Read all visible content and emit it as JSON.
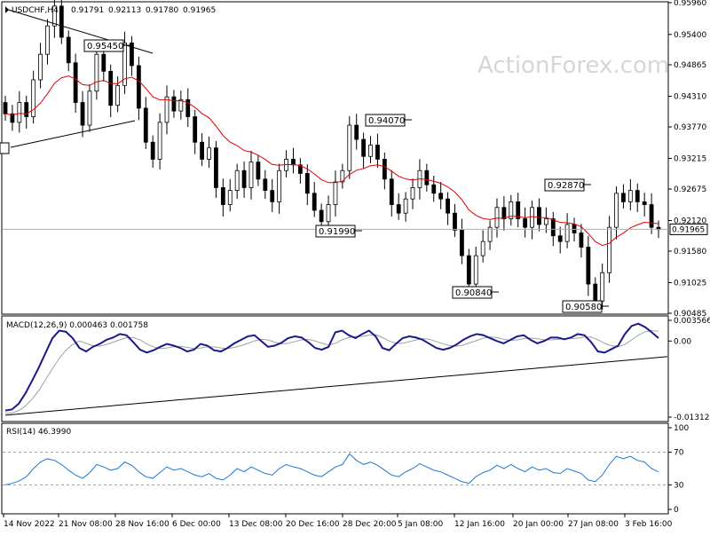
{
  "watermark": "ActionForex.com",
  "chart_data": [
    {
      "type": "candlestick",
      "panel": "price",
      "title": "USDCHF,H4",
      "ohlc": [
        "0.91791",
        "0.92113",
        "0.91780",
        "0.91965"
      ],
      "last_price": 0.91965,
      "last_price_label": "0.91965",
      "ylim": [
        0.90485,
        0.9596
      ],
      "y_ticks": [
        0.9596,
        0.954,
        0.94865,
        0.9431,
        0.9377,
        0.93215,
        0.92675,
        0.9212,
        0.9158,
        0.91025,
        0.90485
      ],
      "y_tick_labels": [
        "0.95960",
        "0.95400",
        "0.94865",
        "0.94310",
        "0.93770",
        "0.93215",
        "0.92675",
        "0.92120",
        "0.91580",
        "0.91025",
        "0.90485"
      ],
      "annotations": [
        {
          "label": "0.95450",
          "value": 0.9545,
          "date": "23 Nov"
        },
        {
          "label": "0.94070",
          "value": 0.9407,
          "date": "2 Jan"
        },
        {
          "label": "0.91990",
          "value": 0.9199,
          "date": "28 Dec"
        },
        {
          "label": "0.92870",
          "value": 0.9287,
          "date": "29 Jan"
        },
        {
          "label": "0.90840",
          "value": 0.9084,
          "date": "16 Jan"
        },
        {
          "label": "0.90580",
          "value": 0.9058,
          "date": "1 Feb"
        }
      ],
      "series": [
        {
          "type": "candlestick",
          "close": [
            0.94,
            0.9385,
            0.942,
            0.9395,
            0.946,
            0.9505,
            0.9555,
            0.959,
            0.9535,
            0.949,
            0.942,
            0.938,
            0.944,
            0.9505,
            0.9475,
            0.9415,
            0.945,
            0.9525,
            0.9485,
            0.941,
            0.935,
            0.932,
            0.9385,
            0.943,
            0.9405,
            0.9425,
            0.9395,
            0.935,
            0.932,
            0.934,
            0.927,
            0.924,
            0.9265,
            0.93,
            0.927,
            0.9315,
            0.9285,
            0.9265,
            0.9245,
            0.93,
            0.932,
            0.931,
            0.9295,
            0.926,
            0.923,
            0.921,
            0.924,
            0.928,
            0.93,
            0.938,
            0.9355,
            0.9325,
            0.9345,
            0.932,
            0.9285,
            0.924,
            0.9225,
            0.925,
            0.927,
            0.93,
            0.9275,
            0.926,
            0.925,
            0.9225,
            0.9195,
            0.915,
            0.91,
            0.915,
            0.9175,
            0.92,
            0.9235,
            0.9215,
            0.9245,
            0.9215,
            0.92,
            0.9235,
            0.9205,
            0.9215,
            0.9185,
            0.9175,
            0.9205,
            0.919,
            0.9165,
            0.91,
            0.907,
            0.912,
            0.92,
            0.926,
            0.9245,
            0.9265,
            0.9245,
            0.924,
            0.92,
            0.9196
          ]
        },
        {
          "type": "line",
          "color": "#e00000"
        }
      ],
      "vertical_lines_every": 20
    },
    {
      "type": "line",
      "panel": "macd",
      "title": "MACD(12,26,9) 0.000463 0.001758",
      "ylim": [
        -0.013125,
        0.003566
      ],
      "y_ticks": [
        0.003566,
        0.0,
        -0.013125
      ],
      "y_tick_labels": [
        "0.003566",
        "0.00",
        "-0.013125"
      ],
      "series": [
        {
          "type": "line",
          "color": "#1a1a8c",
          "values": [
            -0.012,
            -0.0118,
            -0.0108,
            -0.009,
            -0.0068,
            -0.0045,
            -0.002,
            0.0005,
            0.0018,
            0.0016,
            0.0005,
            -0.0012,
            -0.0018,
            -0.001,
            -0.0005,
            0.0002,
            0.0006,
            0.0012,
            0.001,
            -0.0002,
            -0.0015,
            -0.002,
            -0.0016,
            -0.001,
            -0.0005,
            -0.0008,
            -0.0012,
            -0.0018,
            -0.0015,
            -0.0005,
            -0.0008,
            -0.0016,
            -0.0018,
            -0.0012,
            -0.0004,
            0.0002,
            0.0008,
            0.001,
            0.0,
            -0.001,
            -0.0008,
            -0.0003,
            0.0005,
            0.0008,
            0.0006,
            -0.0002,
            -0.0012,
            -0.0015,
            -0.001,
            0.0015,
            0.0018,
            0.001,
            0.0005,
            0.0012,
            0.0018,
            0.0008,
            -0.0012,
            -0.0016,
            -0.0005,
            0.0005,
            0.0008,
            0.0006,
            0.0002,
            -0.0005,
            -0.0012,
            -0.0015,
            -0.0012,
            -0.0006,
            0.0002,
            0.0008,
            0.0012,
            0.001,
            0.0005,
            0.0,
            -0.0004,
            0.0002,
            0.0008,
            0.001,
            0.0002,
            -0.0004,
            0.0,
            0.0006,
            0.0006,
            0.0003,
            0.0006,
            0.0012,
            0.001,
            -0.0002,
            -0.0018,
            -0.002,
            -0.0014,
            -0.0008,
            0.0012,
            0.0026,
            0.003,
            0.0024,
            0.0015,
            0.0005
          ]
        },
        {
          "type": "line",
          "color": "#a0a0a0",
          "values": [
            -0.0125,
            -0.0124,
            -0.012,
            -0.0112,
            -0.01,
            -0.0085,
            -0.0066,
            -0.0048,
            -0.003,
            -0.0016,
            -0.0006,
            0.0,
            -0.0004,
            -0.0008,
            -0.0009,
            -0.0006,
            -0.0002,
            0.0002,
            0.0006,
            0.0006,
            0.0002,
            -0.0005,
            -0.001,
            -0.0013,
            -0.0012,
            -0.001,
            -0.0009,
            -0.0011,
            -0.0013,
            -0.0012,
            -0.001,
            -0.001,
            -0.0012,
            -0.0013,
            -0.0011,
            -0.0008,
            -0.0004,
            0.0,
            0.0003,
            0.0002,
            -0.0002,
            -0.0005,
            -0.0004,
            -0.0001,
            0.0002,
            0.0003,
            0.0,
            -0.0004,
            -0.0007,
            -0.0004,
            0.0002,
            0.0006,
            0.0008,
            0.0008,
            0.001,
            0.0011,
            0.0006,
            0.0,
            -0.0004,
            -0.0004,
            -0.0001,
            0.0002,
            0.0004,
            0.0003,
            -0.0001,
            -0.0005,
            -0.0008,
            -0.0009,
            -0.0007,
            -0.0003,
            0.0001,
            0.0005,
            0.0007,
            0.0006,
            0.0003,
            0.0001,
            0.0002,
            0.0004,
            0.0005,
            0.0004,
            0.0002,
            0.0002,
            0.0003,
            0.0004,
            0.0004,
            0.0005,
            0.0007,
            0.0007,
            0.0002,
            -0.0004,
            -0.0008,
            -0.001,
            -0.0006,
            0.0002,
            0.001,
            0.0016,
            0.0018,
            0.0017
          ]
        }
      ],
      "trendline": {
        "from": [
          0,
          -0.0128
        ],
        "to": [
          97,
          -0.0027
        ]
      }
    },
    {
      "type": "line",
      "panel": "rsi",
      "title": "RSI(14) 46.3990",
      "ylim": [
        0,
        100
      ],
      "y_ticks": [
        100,
        70,
        30,
        0
      ],
      "y_tick_labels": [
        "100",
        "70",
        "30",
        "0"
      ],
      "levels": [
        70,
        30
      ],
      "series": [
        {
          "type": "line",
          "color": "#1f77d4",
          "values": [
            30,
            32,
            35,
            40,
            50,
            58,
            62,
            60,
            55,
            48,
            42,
            38,
            45,
            55,
            52,
            48,
            50,
            58,
            54,
            46,
            40,
            38,
            45,
            52,
            48,
            50,
            46,
            42,
            40,
            44,
            38,
            36,
            42,
            50,
            46,
            52,
            48,
            44,
            42,
            50,
            55,
            52,
            50,
            46,
            42,
            40,
            46,
            52,
            55,
            68,
            60,
            55,
            58,
            54,
            48,
            42,
            40,
            46,
            50,
            56,
            52,
            48,
            46,
            42,
            38,
            34,
            32,
            40,
            45,
            48,
            54,
            50,
            55,
            50,
            46,
            52,
            48,
            50,
            45,
            44,
            50,
            47,
            44,
            36,
            34,
            42,
            55,
            65,
            62,
            65,
            60,
            58,
            50,
            46
          ]
        }
      ]
    }
  ],
  "x_axis": {
    "tick_labels": [
      "14 Nov 2022",
      "21 Nov 08:00",
      "28 Nov 16:00",
      "6 Dec 00:00",
      "13 Dec 08:00",
      "20 Dec 16:00",
      "28 Dec 20:00",
      "5 Jan 08:00",
      "12 Jan 16:00",
      "20 Jan 00:00",
      "27 Jan 08:00",
      "3 Feb 16:00"
    ]
  }
}
